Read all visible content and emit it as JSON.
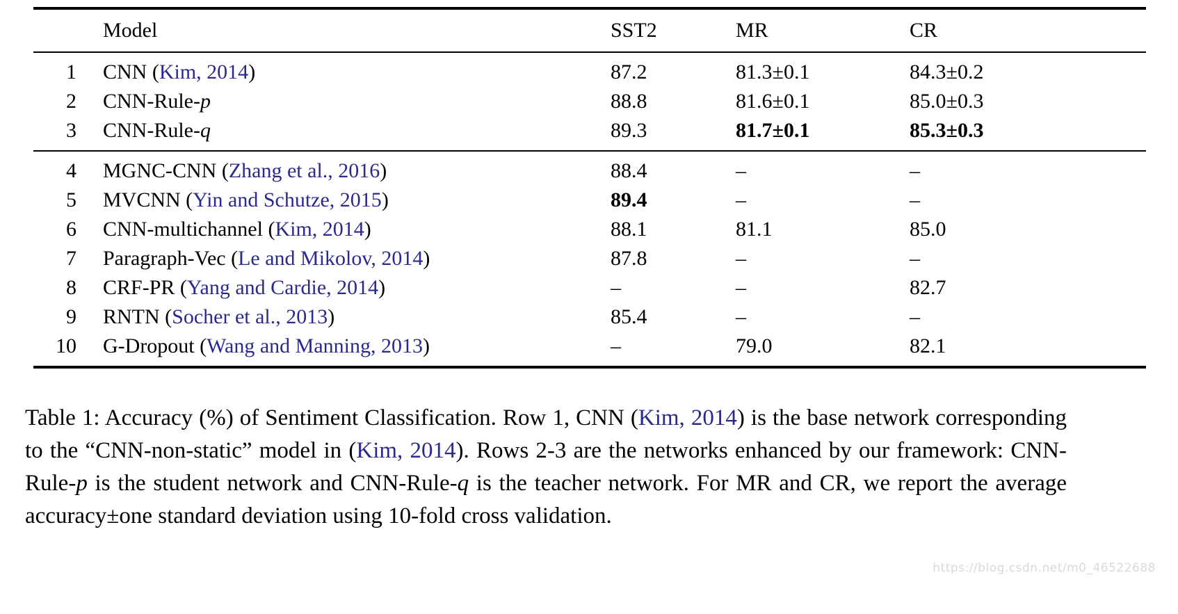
{
  "colors": {
    "citation": "#2a2a8e",
    "rule": "#000000",
    "watermark": "#d9d9d9"
  },
  "table": {
    "headers": {
      "num": "",
      "model": "Model",
      "sst2": "SST2",
      "mr": "MR",
      "cr": "CR"
    },
    "groups": [
      {
        "rows": [
          {
            "num": "1",
            "model": [
              {
                "t": "CNN ("
              },
              {
                "t": "Kim, 2014",
                "s": "cite"
              },
              {
                "t": ")"
              }
            ],
            "cells": [
              {
                "t": "87.2"
              },
              {
                "t": "81.3±0.1"
              },
              {
                "t": "84.3±0.2"
              }
            ]
          },
          {
            "num": "2",
            "model": [
              {
                "t": "CNN-Rule-"
              },
              {
                "t": "p",
                "s": "i"
              }
            ],
            "cells": [
              {
                "t": "88.8"
              },
              {
                "t": "81.6±0.1"
              },
              {
                "t": "85.0±0.3"
              }
            ]
          },
          {
            "num": "3",
            "model": [
              {
                "t": "CNN-Rule-"
              },
              {
                "t": "q",
                "s": "i"
              }
            ],
            "cells": [
              {
                "t": "89.3"
              },
              {
                "t": "81.7±0.1",
                "b": true
              },
              {
                "t": "85.3±0.3",
                "b": true
              }
            ]
          }
        ]
      },
      {
        "rows": [
          {
            "num": "4",
            "model": [
              {
                "t": "MGNC-CNN ("
              },
              {
                "t": "Zhang et al., 2016",
                "s": "cite"
              },
              {
                "t": ")"
              }
            ],
            "cells": [
              {
                "t": "88.4"
              },
              {
                "t": "–"
              },
              {
                "t": "–"
              }
            ]
          },
          {
            "num": "5",
            "model": [
              {
                "t": "MVCNN ("
              },
              {
                "t": "Yin and Schutze, 2015",
                "s": "cite"
              },
              {
                "t": ")"
              }
            ],
            "cells": [
              {
                "t": "89.4",
                "b": true
              },
              {
                "t": "–"
              },
              {
                "t": "–"
              }
            ]
          },
          {
            "num": "6",
            "model": [
              {
                "t": "CNN-multichannel ("
              },
              {
                "t": "Kim, 2014",
                "s": "cite"
              },
              {
                "t": ")"
              }
            ],
            "cells": [
              {
                "t": "88.1"
              },
              {
                "t": "81.1"
              },
              {
                "t": "85.0"
              }
            ]
          },
          {
            "num": "7",
            "model": [
              {
                "t": "Paragraph-Vec ("
              },
              {
                "t": "Le and Mikolov, 2014",
                "s": "cite"
              },
              {
                "t": ")"
              }
            ],
            "cells": [
              {
                "t": "87.8"
              },
              {
                "t": "–"
              },
              {
                "t": "–"
              }
            ]
          },
          {
            "num": "8",
            "model": [
              {
                "t": "CRF-PR ("
              },
              {
                "t": "Yang and Cardie, 2014",
                "s": "cite"
              },
              {
                "t": ")"
              }
            ],
            "cells": [
              {
                "t": "–"
              },
              {
                "t": "–"
              },
              {
                "t": "82.7"
              }
            ]
          },
          {
            "num": "9",
            "model": [
              {
                "t": "RNTN ("
              },
              {
                "t": "Socher et al., 2013",
                "s": "cite"
              },
              {
                "t": ")"
              }
            ],
            "cells": [
              {
                "t": "85.4"
              },
              {
                "t": "–"
              },
              {
                "t": "–"
              }
            ]
          },
          {
            "num": "10",
            "model": [
              {
                "t": "G-Dropout ("
              },
              {
                "t": "Wang and Manning, 2013",
                "s": "cite"
              },
              {
                "t": ")"
              }
            ],
            "cells": [
              {
                "t": "–"
              },
              {
                "t": "79.0"
              },
              {
                "t": "82.1"
              }
            ]
          }
        ]
      }
    ]
  },
  "caption": {
    "segments": [
      {
        "t": "Table 1:  Accuracy (%) of Sentiment Classification.  Row 1, CNN ("
      },
      {
        "t": "Kim, 2014",
        "s": "cite"
      },
      {
        "t": ") is the base network corresponding to the “CNN-non-static” model in ("
      },
      {
        "t": "Kim, 2014",
        "s": "cite"
      },
      {
        "t": ").  Rows 2-3 are the networks enhanced by our framework: CNN-Rule-"
      },
      {
        "t": "p",
        "s": "i"
      },
      {
        "t": " is the student network and CNN-Rule-"
      },
      {
        "t": "q",
        "s": "i"
      },
      {
        "t": " is the teacher network.  For MR and CR, we report the average accuracy±one standard deviation using 10-fold cross validation."
      }
    ]
  },
  "watermark": {
    "text": "https://blog.csdn.net/m0_46522688"
  }
}
